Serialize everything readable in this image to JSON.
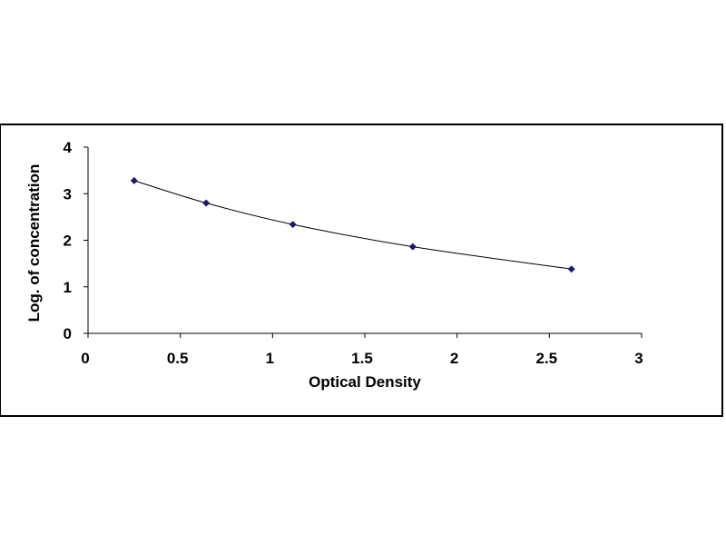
{
  "chart_data": {
    "type": "line",
    "title": "",
    "xlabel": "Optical Density",
    "ylabel": "Log. of concentration",
    "xlim": [
      0,
      3
    ],
    "ylim": [
      0,
      4
    ],
    "xticks": [
      "0",
      "0.5",
      "1",
      "1.5",
      "2",
      "2.5",
      "3"
    ],
    "yticks": [
      "0",
      "1",
      "2",
      "3",
      "4"
    ],
    "grid": false,
    "legend": "none",
    "marker": "diamond",
    "marker_color": "#1a1a6e",
    "line_color": "#000000",
    "series": [
      {
        "x": [
          0.25,
          0.64,
          1.11,
          1.76,
          2.62
        ],
        "y": [
          3.28,
          2.8,
          2.34,
          1.86,
          1.38
        ]
      }
    ]
  }
}
